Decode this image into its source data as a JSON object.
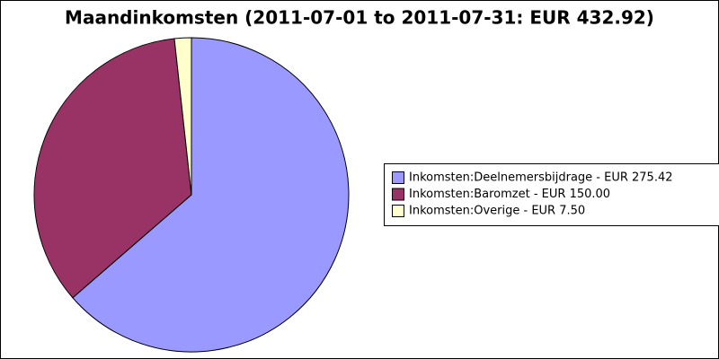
{
  "chart_data": {
    "type": "pie",
    "title": "Maandinkomsten (2011-07-01 to 2011-07-31: EUR 432.92)",
    "categories": [
      "Inkomsten:Deelnemersbijdrage - EUR 275.42",
      "Inkomsten:Baromzet - EUR 150.00",
      "Inkomsten:Overige - EUR 7.50"
    ],
    "values": [
      275.42,
      150,
      7.5
    ],
    "colors": [
      "#9999ff",
      "#993366",
      "#ffffcc"
    ],
    "legend": "right"
  }
}
